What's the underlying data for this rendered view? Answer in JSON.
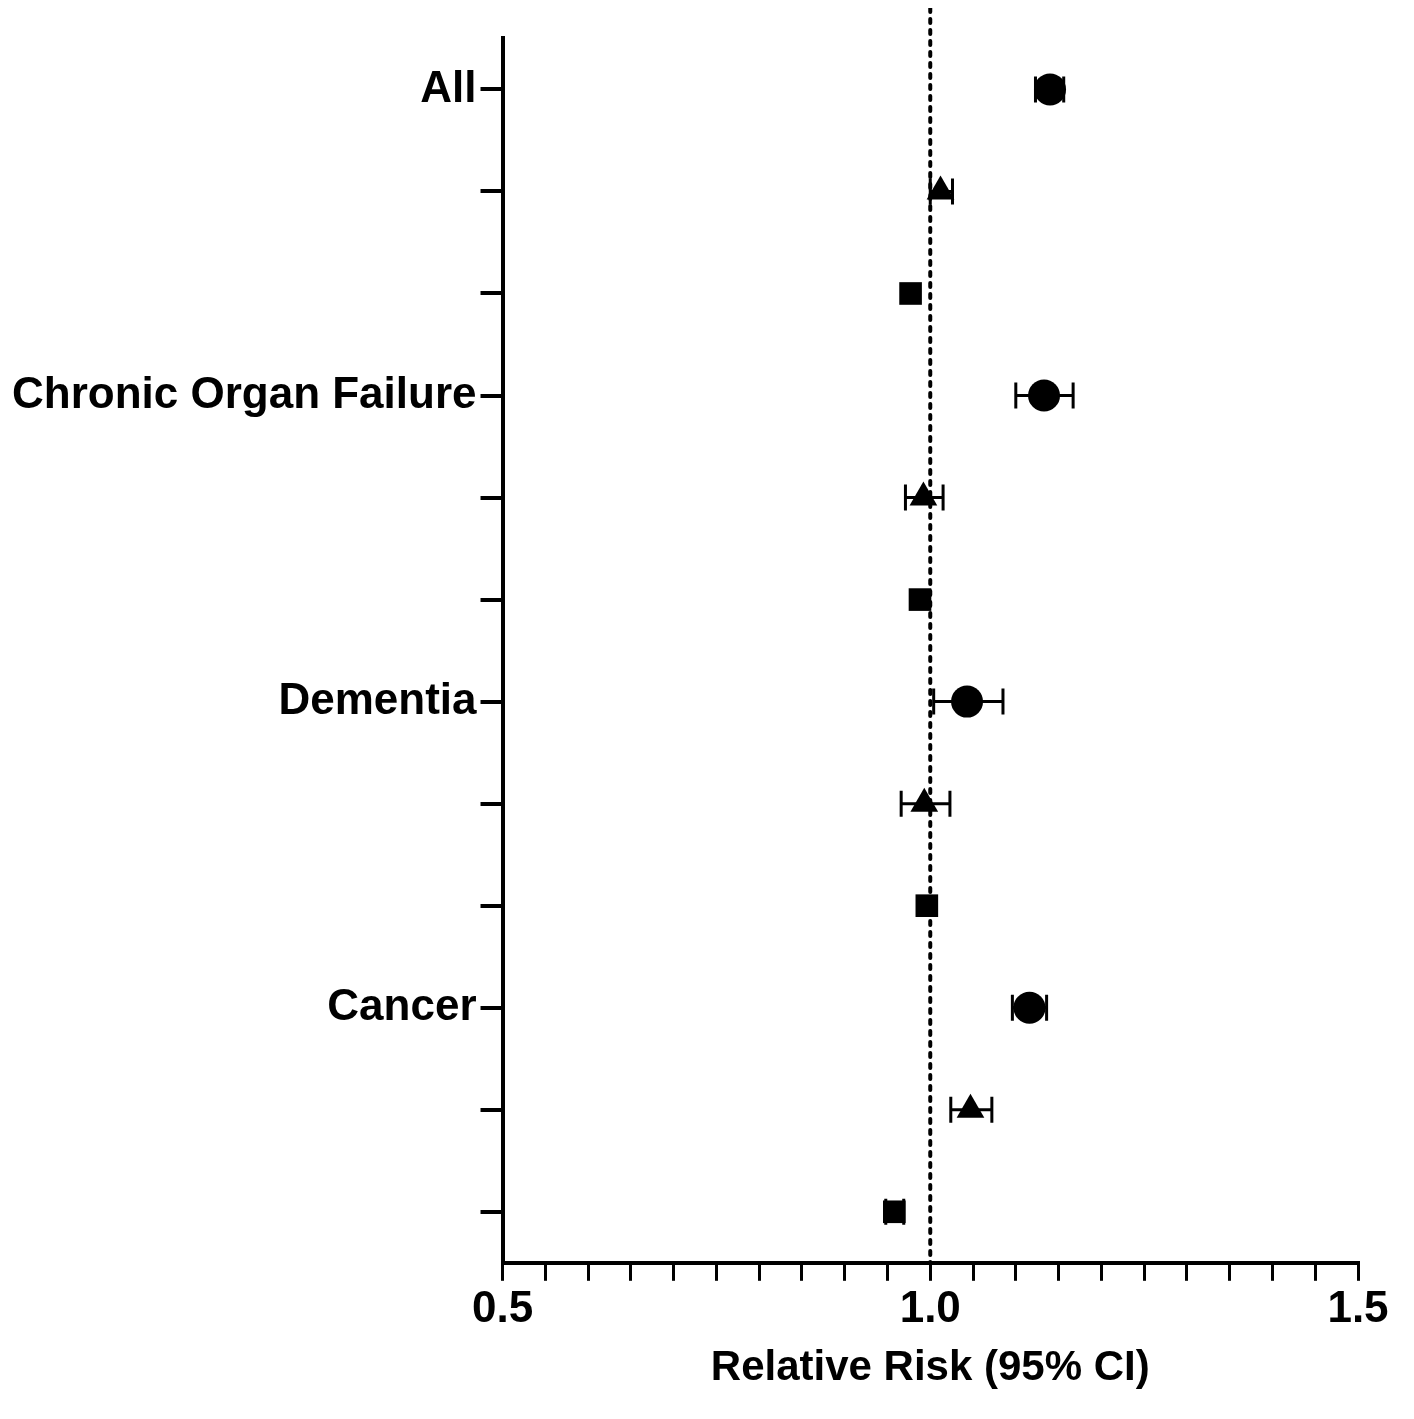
{
  "chart_data": {
    "type": "scatter",
    "orientation": "horizontal",
    "xlabel": "Relative Risk (95% CI)",
    "categories": [
      "All",
      null,
      null,
      "Chronic Organ Failure",
      null,
      null,
      "Dementia",
      null,
      null,
      "Cancer",
      null,
      null
    ],
    "xlim": [
      0.5,
      1.5
    ],
    "xticks": [
      0.5,
      {
        "value": 0.55,
        "label": null
      },
      {
        "value": 0.6,
        "label": null
      },
      {
        "value": 0.65,
        "label": null
      },
      {
        "value": 0.7,
        "label": null
      },
      {
        "value": 0.75,
        "label": null
      },
      {
        "value": 0.8,
        "label": null
      },
      {
        "value": 0.85,
        "label": null
      },
      {
        "value": 0.9,
        "label": null
      },
      {
        "value": 0.95,
        "label": null
      },
      {
        "value": 1.0,
        "label": "1.0"
      },
      {
        "value": 1.05,
        "label": null
      },
      {
        "value": 1.1,
        "label": null
      },
      {
        "value": 1.15,
        "label": null
      },
      {
        "value": 1.2,
        "label": null
      },
      {
        "value": 1.25,
        "label": null
      },
      {
        "value": 1.3,
        "label": null
      },
      {
        "value": 1.35,
        "label": null
      },
      {
        "value": 1.4,
        "label": null
      },
      {
        "value": 1.45,
        "label": null
      },
      1.5
    ],
    "grid": false,
    "legend": false,
    "ref_lines": [
      {
        "axis": "x",
        "value": 1.0,
        "color": "#000000",
        "line_style": "dotted"
      }
    ],
    "series": [
      {
        "type": "scatter",
        "marker": "circle",
        "color": "#000000",
        "values": [
          1.14,
          null,
          null,
          1.133,
          null,
          null,
          1.043,
          null,
          null,
          1.116,
          null,
          null
        ],
        "errors": [
          [
            1.123,
            1.156
          ],
          null,
          null,
          [
            1.1,
            1.167
          ],
          null,
          null,
          [
            1.004,
            1.085
          ],
          null,
          null,
          [
            1.096,
            1.136
          ],
          null,
          null
        ]
      },
      {
        "type": "scatter",
        "marker": "triangle",
        "color": "#000000",
        "values": [
          null,
          1.012,
          null,
          null,
          0.992,
          null,
          null,
          0.993,
          null,
          null,
          1.047,
          null
        ],
        "errors": [
          null,
          [
            1.0,
            1.026
          ],
          null,
          null,
          [
            0.971,
            1.015
          ],
          null,
          null,
          [
            0.966,
            1.023
          ],
          null,
          null,
          [
            1.024,
            1.072
          ],
          null
        ]
      },
      {
        "type": "scatter",
        "marker": "square",
        "color": "#000000",
        "values": [
          null,
          null,
          0.977,
          null,
          null,
          0.988,
          null,
          null,
          0.996,
          null,
          null,
          0.958
        ],
        "errors": [
          null,
          null,
          null,
          null,
          null,
          null,
          null,
          null,
          null,
          null,
          null,
          [
            0.948,
            0.969
          ]
        ]
      }
    ]
  }
}
